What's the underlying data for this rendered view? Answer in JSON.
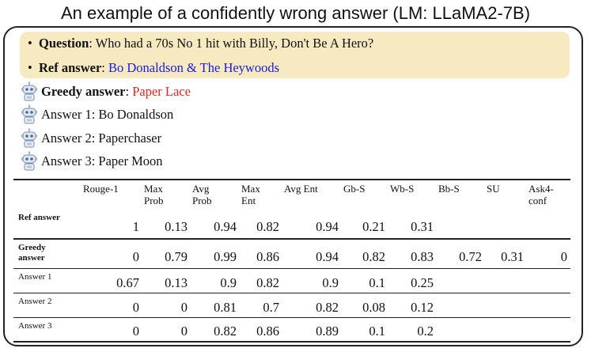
{
  "title": "An example of a confidently wrong answer (LM: LLaMA2-7B)",
  "question": {
    "label": "Question",
    "text": ": Who had a 70s No 1 hit with Billy, Don't Be A Hero?"
  },
  "ref_answer": {
    "label": "Ref answer",
    "colon": ": ",
    "text": "Bo Donaldson & The Heywoods",
    "color": "#1a1adf"
  },
  "greedy_answer": {
    "label": "Greedy answer",
    "colon": ": ",
    "text": "Paper Lace",
    "color": "#e8201e"
  },
  "answers": [
    {
      "text": "Answer 1: Bo Donaldson"
    },
    {
      "text": "Answer 2: Paperchaser"
    },
    {
      "text": "Answer 3: Paper Moon"
    }
  ],
  "icon": "robot-icon",
  "table": {
    "headers": [
      {
        "line1": "",
        "line2": ""
      },
      {
        "line1": "Rouge-1",
        "line2": ""
      },
      {
        "line1": "Max",
        "line2": "Prob"
      },
      {
        "line1": "Avg",
        "line2": "Prob"
      },
      {
        "line1": "Max",
        "line2": "Ent"
      },
      {
        "line1": "Avg Ent",
        "line2": ""
      },
      {
        "line1": "Gb-S",
        "line2": ""
      },
      {
        "line1": "Wb-S",
        "line2": ""
      },
      {
        "line1": "Bb-S",
        "line2": ""
      },
      {
        "line1": "SU",
        "line2": ""
      },
      {
        "line1": "Ask4-",
        "line2": "conf"
      }
    ],
    "rows": [
      {
        "label1": "Ref answer",
        "label2": "",
        "bold": true,
        "values": [
          "1",
          "0.13",
          "0.94",
          "0.82",
          "0.94",
          "0.21",
          "0.31",
          "",
          "",
          ""
        ]
      },
      {
        "label1": "Greedy",
        "label2": "answer",
        "bold": true,
        "values": [
          "0",
          "0.79",
          "0.99",
          "0.86",
          "0.94",
          "0.82",
          "0.83",
          "0.72",
          "0.31",
          "0"
        ]
      },
      {
        "label1": "Answer 1",
        "label2": "",
        "bold": false,
        "values": [
          "0.67",
          "0.13",
          "0.9",
          "0.82",
          "0.9",
          "0.1",
          "0.25",
          "",
          "",
          ""
        ]
      },
      {
        "label1": "Answer 2",
        "label2": "",
        "bold": false,
        "values": [
          "0",
          "0",
          "0.81",
          "0.7",
          "0.82",
          "0.08",
          "0.12",
          "",
          "",
          ""
        ]
      },
      {
        "label1": "Answer 3",
        "label2": "",
        "bold": false,
        "values": [
          "0",
          "0",
          "0.82",
          "0.86",
          "0.89",
          "0.1",
          "0.2",
          "",
          "",
          ""
        ]
      }
    ]
  }
}
